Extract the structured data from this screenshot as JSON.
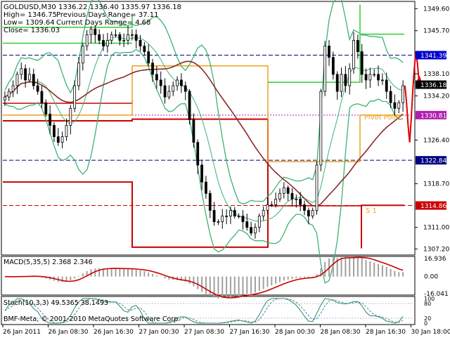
{
  "info": {
    "symbol_line": "GOLDUSD,M30   1336.22  1336.40  1335.97  1336.18",
    "high_line": "High= 1346.75",
    "low_line": "Low= 1309.64",
    "close_line": "Close= 1336.03",
    "prev_range_line": "Previous Days Range= 37.11",
    "curr_range_line": "Current Days Range= 4.68"
  },
  "macd": {
    "label": "MACD(5,35,5) 2.368 2.346"
  },
  "stoch": {
    "label": "Stoch(10,3,3) 49.5365 38.1493"
  },
  "footer": {
    "copyright": "BMF-Meta, © 2001-2010 MetaQuotes Software Corp."
  },
  "annotations": {
    "pivot": "Pivot Point",
    "s1": "S 1"
  },
  "colors": {
    "candle": "#000000",
    "bollinger": "#3cb371",
    "ma": "#8b2a2a",
    "range": "#cc0000",
    "pivot": "#f0a020",
    "r1": "#32cd32",
    "blue_line": "#000080",
    "price_tag": "#000000"
  },
  "chart_data": [
    {
      "type": "candlestick",
      "title": "GOLDUSD,M30",
      "x_tick_labels": [
        "26 Jan 2011",
        "26 Jan 08:30",
        "26 Jan 16:30",
        "27 Jan 00:30",
        "27 Jan 08:30",
        "27 Jan 16:30",
        "28 Jan 00:30",
        "28 Jan 08:30",
        "28 Jan 16:30",
        "30 Jan 18:00"
      ],
      "y_tick_labels": [
        "1349.60",
        "1345.70",
        "1341.39",
        "1338.10",
        "1336.18",
        "1334.20",
        "1330.81",
        "1326.40",
        "1322.84",
        "1318.70",
        "1314.86",
        "1311.00",
        "1307.20"
      ],
      "y_ticks": [
        1349.6,
        1345.7,
        1338.1,
        1334.2,
        1326.4,
        1318.7,
        1311.0,
        1307.2
      ],
      "price_tags": [
        {
          "label": "1341.39",
          "value": 1341.39,
          "bg": "#0000cc",
          "fg": "#ffffff"
        },
        {
          "label": "1336.18",
          "value": 1336.18,
          "bg": "#000000",
          "fg": "#ffffff"
        },
        {
          "label": "1330.81",
          "value": 1330.81,
          "bg": "#b020b0",
          "fg": "#ffffff"
        },
        {
          "label": "1322.84",
          "value": 1322.84,
          "bg": "#000080",
          "fg": "#ffffff"
        },
        {
          "label": "1314.86",
          "value": 1314.86,
          "bg": "#cc0000",
          "fg": "#ffffff"
        }
      ],
      "ylim": [
        1306.5,
        1350.5
      ],
      "close_series": [
        1334,
        1335,
        1336,
        1338,
        1339,
        1337,
        1338,
        1336,
        1335,
        1333,
        1331,
        1329,
        1327,
        1326,
        1327,
        1329,
        1332,
        1336,
        1340,
        1343,
        1345,
        1346,
        1345,
        1344,
        1343,
        1344,
        1345,
        1345,
        1344,
        1344,
        1345,
        1345,
        1344,
        1343,
        1342,
        1340,
        1338,
        1337,
        1336,
        1334,
        1335,
        1336,
        1337,
        1336,
        1335,
        1330,
        1326,
        1322,
        1319,
        1317,
        1314,
        1312,
        1312,
        1313,
        1313,
        1314,
        1313,
        1313,
        1312,
        1311,
        1310,
        1311,
        1313,
        1314,
        1315,
        1315,
        1316,
        1317,
        1318,
        1317,
        1316,
        1316,
        1315,
        1314,
        1313,
        1314,
        1322,
        1335,
        1343,
        1341,
        1338,
        1335,
        1338,
        1336,
        1339,
        1344,
        1342,
        1338,
        1337,
        1338,
        1338,
        1337,
        1337,
        1335,
        1333,
        1332,
        1333,
        1336
      ],
      "projection": [
        1336,
        1333,
        1329,
        1326,
        1330,
        1335,
        1339,
        1342,
        1340,
        1337
      ]
    },
    {
      "type": "bar",
      "title": "MACD(5,35,5)",
      "values_label": "2.368 2.346",
      "y_tick_labels": [
        "16.936",
        "0.00",
        "-16.041"
      ],
      "ylim": [
        -16.041,
        16.936
      ]
    },
    {
      "type": "line",
      "title": "Stoch(10,3,3)",
      "values_label": "49.5365 38.1493",
      "y_tick_labels": [
        "100",
        "80",
        "20",
        "0"
      ],
      "ylim": [
        0,
        100
      ]
    }
  ]
}
